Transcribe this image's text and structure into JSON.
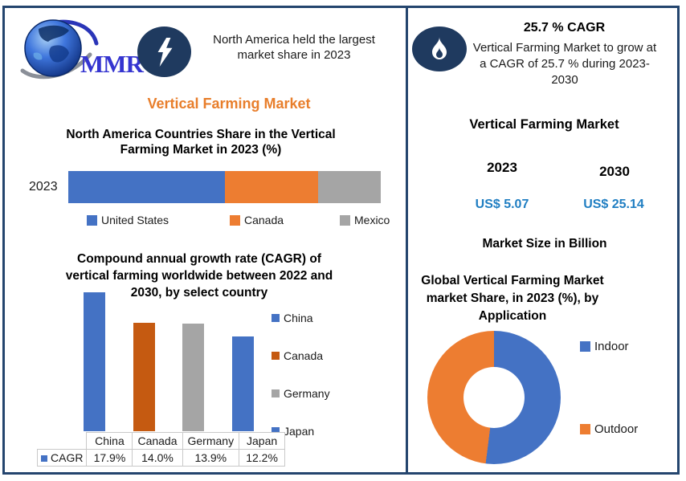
{
  "brand": {
    "logo_text": "MMR"
  },
  "header_left": {
    "icon": "lightning-icon",
    "text": "North America held the largest market share in 2023"
  },
  "header_right": {
    "icon": "flame-icon",
    "cagr_headline": "25.7 % CAGR",
    "description": "Vertical Farming Market to grow at a CAGR of 25.7 % during 2023-2030"
  },
  "left_panel": {
    "orange_title": "Vertical Farming Market"
  },
  "right_panel": {
    "title": "Vertical Farming Market",
    "years": [
      "2023",
      "2030"
    ],
    "values": [
      "US$ 5.07",
      "US$ 25.14"
    ],
    "caption": "Market Size in Billion"
  },
  "colors": {
    "navy": "#1F3A5F",
    "border": "#24456E",
    "accent_blue_text": "#1F7EC2",
    "title_orange": "#E87E2B",
    "series_blue": "#4472C4",
    "series_orange": "#ED7D31",
    "series_gray": "#A5A5A5",
    "series_dark_orange": "#C55A11"
  },
  "chart_data": [
    {
      "type": "bar",
      "variant": "horizontal-stacked",
      "title": "North America  Countries Share in the  Vertical Farming Market in 2023 (%)",
      "categories": [
        "2023"
      ],
      "series": [
        {
          "name": "United States",
          "color": "#4472C4",
          "values": [
            50
          ]
        },
        {
          "name": "Canada",
          "color": "#ED7D31",
          "values": [
            30
          ]
        },
        {
          "name": "Mexico",
          "color": "#A5A5A5",
          "values": [
            20
          ]
        }
      ],
      "unit": "%",
      "legend_position": "bottom",
      "xlim": [
        0,
        100
      ]
    },
    {
      "type": "bar",
      "title": "Compound annual growth rate (CAGR) of vertical farming worldwide between 2022 and 2030, by select country",
      "categories": [
        "China",
        "Canada",
        "Germany",
        "Japan"
      ],
      "values": [
        17.9,
        14.0,
        13.9,
        12.2
      ],
      "value_labels": [
        "17.9%",
        "14.0%",
        "13.9%",
        "12.2%"
      ],
      "bar_colors": [
        "#4472C4",
        "#C55A11",
        "#A5A5A5",
        "#4472C4"
      ],
      "series_name": "CAGR",
      "ylim": [
        0,
        18.3
      ],
      "legend_position": "right",
      "data_table": true
    },
    {
      "type": "pie",
      "variant": "donut",
      "title": "Global Vertical Farming Market market Share, in 2023 (%), by Application",
      "labels": [
        "Indoor",
        "Outdoor"
      ],
      "values": [
        52,
        48
      ],
      "colors": [
        "#4472C4",
        "#ED7D31"
      ],
      "legend_position": "right"
    }
  ]
}
